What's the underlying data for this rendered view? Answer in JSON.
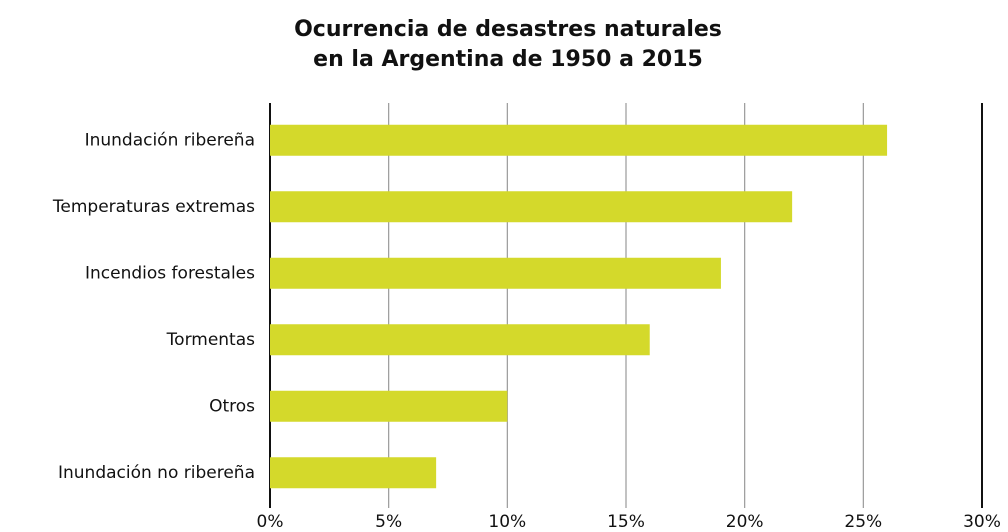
{
  "chart_data": {
    "type": "bar",
    "orientation": "horizontal",
    "title": [
      "Ocurrencia de desastres naturales",
      "en la Argentina de 1950 a 2015"
    ],
    "categories": [
      "Inundación ribereña",
      "Temperaturas extremas",
      "Incendios forestales",
      "Tormentas",
      "Otros",
      "Inundación no ribereña"
    ],
    "values": [
      26,
      22,
      19,
      16,
      10,
      7
    ],
    "color": "#d4d92b",
    "xlim": [
      0,
      30
    ],
    "xticks": [
      {
        "value": 0,
        "label": "0%"
      },
      {
        "value": 5,
        "label": "5%"
      },
      {
        "value": 10,
        "label": "10%"
      },
      {
        "value": 15,
        "label": "15%"
      },
      {
        "value": 20,
        "label": "20%"
      },
      {
        "value": 25,
        "label": "25%"
      },
      {
        "value": 30,
        "label": "30%"
      }
    ],
    "grid": true
  }
}
